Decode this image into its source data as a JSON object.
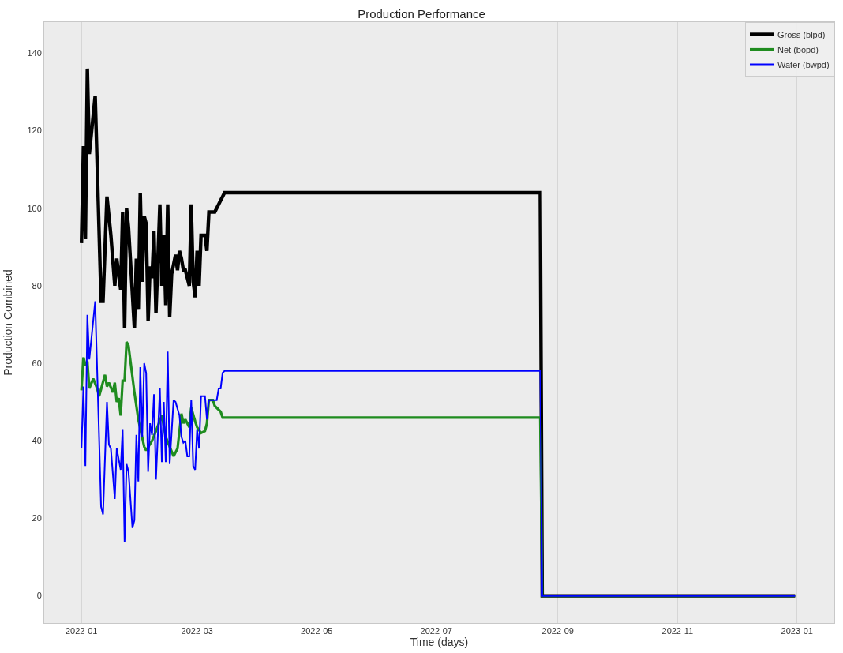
{
  "chart_data": {
    "type": "line",
    "title": "Production Performance",
    "xlabel": "Time (days)",
    "ylabel": "Production Combined",
    "xlim": [
      "2021-12-13",
      "2023-01-20"
    ],
    "xticks": [
      "2022-01",
      "2022-03",
      "2022-05",
      "2022-07",
      "2022-09",
      "2022-11",
      "2023-01"
    ],
    "ylim": [
      -7,
      148
    ],
    "yticks": [
      0,
      20,
      40,
      60,
      80,
      100,
      120,
      140
    ],
    "grid": "x",
    "legend": "top right",
    "marker": "none",
    "line_style": "solid",
    "series": [
      {
        "name": "Gross (blpd)",
        "color": "#000000",
        "x": [
          "2022-01-01",
          "2022-01-02",
          "2022-01-03",
          "2022-01-04",
          "2022-01-05",
          "2022-01-08",
          "2022-01-11",
          "2022-01-12",
          "2022-01-14",
          "2022-01-16",
          "2022-01-18",
          "2022-01-19",
          "2022-01-21",
          "2022-01-22",
          "2022-01-23",
          "2022-01-24",
          "2022-01-25",
          "2022-01-28",
          "2022-01-29",
          "2022-01-30",
          "2022-01-31",
          "2022-02-01",
          "2022-02-02",
          "2022-02-03",
          "2022-02-04",
          "2022-02-05",
          "2022-02-06",
          "2022-02-07",
          "2022-02-08",
          "2022-02-10",
          "2022-02-11",
          "2022-02-12",
          "2022-02-13",
          "2022-02-14",
          "2022-02-15",
          "2022-02-16",
          "2022-02-18",
          "2022-02-19",
          "2022-02-20",
          "2022-02-21",
          "2022-02-22",
          "2022-02-23",
          "2022-02-25",
          "2022-02-26",
          "2022-02-27",
          "2022-02-28",
          "2022-03-01",
          "2022-03-02",
          "2022-03-03",
          "2022-03-05",
          "2022-03-06",
          "2022-03-07",
          "2022-03-10",
          "2022-03-12",
          "2022-03-13",
          "2022-03-14",
          "2022-03-15",
          "2022-08-23",
          "2022-08-24",
          "2022-12-31"
        ],
        "values": [
          91,
          116,
          92,
          136,
          114,
          129,
          76,
          76,
          103,
          93,
          80,
          87,
          79,
          99,
          69,
          100,
          95,
          69,
          87,
          74,
          104,
          81,
          98,
          96,
          71,
          85,
          82,
          94,
          73,
          101,
          80,
          93,
          75,
          101,
          72,
          83,
          88,
          84,
          89,
          87,
          84,
          84,
          80,
          101,
          81,
          77,
          89,
          80,
          93,
          93,
          89,
          99,
          99,
          101,
          102,
          103,
          104,
          104,
          0,
          0
        ]
      },
      {
        "name": "Net (bopd)",
        "color": "#1f8c1f",
        "x": [
          "2022-01-01",
          "2022-01-02",
          "2022-01-03",
          "2022-01-04",
          "2022-01-05",
          "2022-01-07",
          "2022-01-09",
          "2022-01-10",
          "2022-01-13",
          "2022-01-14",
          "2022-01-15",
          "2022-01-17",
          "2022-01-18",
          "2022-01-19",
          "2022-01-20",
          "2022-01-21",
          "2022-01-22",
          "2022-01-23",
          "2022-01-24",
          "2022-01-25",
          "2022-01-28",
          "2022-01-30",
          "2022-02-02",
          "2022-02-03",
          "2022-02-06",
          "2022-02-08",
          "2022-02-11",
          "2022-02-13",
          "2022-02-17",
          "2022-02-19",
          "2022-02-21",
          "2022-02-22",
          "2022-02-23",
          "2022-02-25",
          "2022-02-26",
          "2022-02-28",
          "2022-03-01",
          "2022-03-03",
          "2022-03-05",
          "2022-03-06",
          "2022-03-07",
          "2022-03-09",
          "2022-03-10",
          "2022-03-11",
          "2022-03-13",
          "2022-03-14",
          "2022-08-23",
          "2022-08-24",
          "2022-12-31"
        ],
        "values": [
          53,
          61.5,
          59.5,
          60.5,
          53.5,
          56,
          53.5,
          51.5,
          57,
          54,
          55,
          52.5,
          55,
          50,
          51,
          46.5,
          55.5,
          55.5,
          65.5,
          64.5,
          52.5,
          45.5,
          38.5,
          37.5,
          40,
          42.5,
          46.5,
          41,
          36,
          38,
          47,
          44.5,
          45.5,
          43.5,
          48.5,
          45,
          43.5,
          42,
          42.5,
          44.5,
          50.5,
          50.5,
          49,
          48.5,
          47.5,
          46,
          46,
          0,
          0
        ]
      },
      {
        "name": "Water (bwpd)",
        "color": "#0000ff",
        "x": [
          "2022-01-01",
          "2022-01-02",
          "2022-01-03",
          "2022-01-04",
          "2022-01-05",
          "2022-01-08",
          "2022-01-11",
          "2022-01-12",
          "2022-01-14",
          "2022-01-15",
          "2022-01-16",
          "2022-01-18",
          "2022-01-19",
          "2022-01-21",
          "2022-01-22",
          "2022-01-23",
          "2022-01-24",
          "2022-01-25",
          "2022-01-27",
          "2022-01-28",
          "2022-01-29",
          "2022-01-30",
          "2022-01-31",
          "2022-02-01",
          "2022-02-02",
          "2022-02-03",
          "2022-02-04",
          "2022-02-05",
          "2022-02-06",
          "2022-02-07",
          "2022-02-08",
          "2022-02-10",
          "2022-02-11",
          "2022-02-12",
          "2022-02-13",
          "2022-02-14",
          "2022-02-15",
          "2022-02-17",
          "2022-02-18",
          "2022-02-20",
          "2022-02-21",
          "2022-02-22",
          "2022-02-23",
          "2022-02-24",
          "2022-02-25",
          "2022-02-26",
          "2022-02-27",
          "2022-02-28",
          "2022-03-01",
          "2022-03-02",
          "2022-03-03",
          "2022-03-05",
          "2022-03-06",
          "2022-03-07",
          "2022-03-09",
          "2022-03-11",
          "2022-03-12",
          "2022-03-13",
          "2022-03-14",
          "2022-03-15",
          "2022-08-23",
          "2022-08-24",
          "2022-12-31"
        ],
        "values": [
          38,
          54,
          33.5,
          72.5,
          61,
          76,
          23,
          21,
          50,
          39,
          38,
          25,
          38,
          32.5,
          43,
          14,
          34,
          32,
          17.5,
          19.5,
          41.5,
          29.5,
          59,
          41,
          60,
          57.5,
          32,
          44.5,
          41.5,
          52,
          30,
          53.5,
          34.5,
          50,
          34.5,
          63,
          34,
          50.5,
          50,
          46.5,
          41,
          39.5,
          40,
          36,
          36,
          50.5,
          33.5,
          32.5,
          43,
          38,
          51.5,
          51.5,
          45.5,
          50.5,
          50.5,
          50.5,
          53.5,
          53.5,
          57.5,
          58,
          58,
          0,
          0
        ]
      }
    ]
  }
}
